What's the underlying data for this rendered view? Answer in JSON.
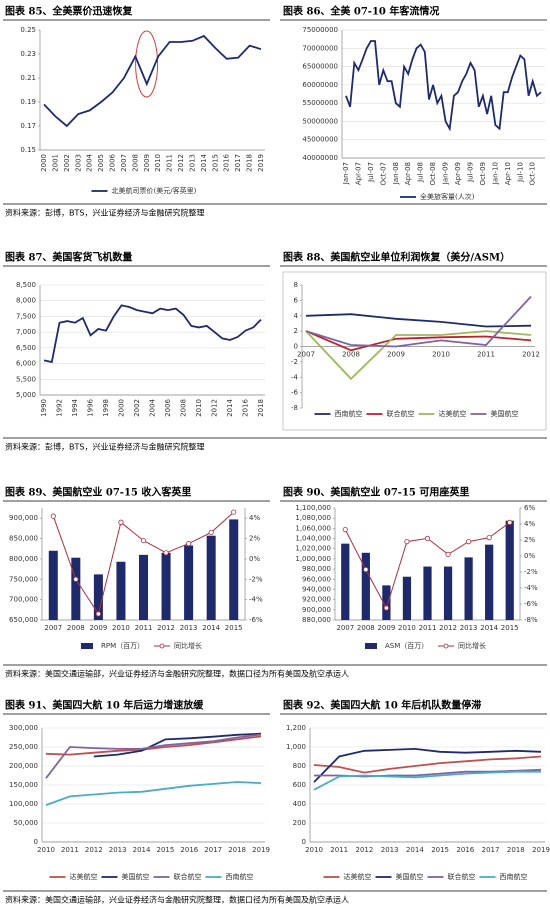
{
  "chart_data": [
    {
      "type": "line",
      "title": "图表 85、全美票价迅速恢复",
      "categories": [
        "2000",
        "2001",
        "2002",
        "2003",
        "2004",
        "2005",
        "2006",
        "2007",
        "2008",
        "2009",
        "2010",
        "2011",
        "2012",
        "2013",
        "2014",
        "2015",
        "2016",
        "2017",
        "2018",
        "2019"
      ],
      "series": [
        {
          "name": "北美航司票价(美元/客英里)",
          "color": "#1f2a6b",
          "values": [
            0.188,
            0.178,
            0.17,
            0.18,
            0.183,
            0.19,
            0.198,
            0.21,
            0.228,
            0.205,
            0.228,
            0.24,
            0.24,
            0.241,
            0.245,
            0.235,
            0.226,
            0.227,
            0.237,
            0.234
          ]
        }
      ],
      "ylim": [
        0.15,
        0.25
      ],
      "yticks": [
        0.15,
        0.17,
        0.19,
        0.21,
        0.23,
        0.25
      ],
      "grid": false,
      "legend": "bottom"
    },
    {
      "type": "line",
      "title": "图表 86、全美 07-10 年客流情况",
      "categories": [
        "Jan-07",
        null,
        null,
        "Apr-07",
        null,
        null,
        "Jul-07",
        null,
        null,
        "Oct-07",
        null,
        null,
        "Jan-08",
        null,
        null,
        "Apr-08",
        null,
        null,
        "Jul-08",
        null,
        null,
        "Oct-08",
        null,
        null,
        "Jan-09",
        null,
        null,
        "Apr-09",
        null,
        null,
        "Jul-09",
        null,
        null,
        "Oct-09",
        null,
        null,
        "Jan-10",
        null,
        null,
        "Apr-10",
        null,
        null,
        "Jul-10",
        null,
        null,
        "Oct-10",
        null,
        null
      ],
      "series": [
        {
          "name": "全美旅客量(人次)",
          "color": "#1f2a6b",
          "values": [
            57000000,
            54000000,
            66000000,
            64000000,
            67000000,
            70000000,
            72000000,
            72000000,
            60000000,
            64000000,
            61000000,
            61000000,
            55000000,
            54000000,
            65000000,
            63000000,
            67000000,
            70000000,
            71000000,
            69000000,
            56000000,
            60000000,
            55000000,
            57000000,
            50000000,
            48000000,
            57000000,
            58000000,
            61000000,
            63000000,
            66000000,
            64000000,
            54000000,
            57000000,
            52000000,
            57000000,
            49000000,
            48000000,
            58000000,
            58000000,
            62000000,
            65000000,
            68000000,
            67000000,
            57000000,
            61000000,
            57000000,
            58000000
          ]
        }
      ],
      "ylim": [
        40000000,
        75000000
      ],
      "yticks": [
        40000000,
        45000000,
        50000000,
        55000000,
        60000000,
        65000000,
        70000000,
        75000000
      ],
      "grid": true,
      "legend": "bottom"
    },
    {
      "type": "line",
      "title": "图表 87、美国客货飞机数量",
      "categories": [
        "1990",
        null,
        "1992",
        null,
        "1994",
        null,
        "1996",
        null,
        "1998",
        null,
        "2000",
        null,
        "2002",
        null,
        "2004",
        null,
        "2006",
        null,
        "2008",
        null,
        "2010",
        null,
        "2012",
        null,
        "2014",
        null,
        "2016",
        null,
        "2018"
      ],
      "values": [
        6100,
        6050,
        7300,
        7350,
        7300,
        7450,
        6900,
        7100,
        7050,
        7500,
        7850,
        7800,
        7700,
        7650,
        7600,
        7750,
        7700,
        7750,
        7550,
        7200,
        7150,
        7200,
        7000,
        6800,
        6750,
        6850,
        7050,
        7150,
        7400
      ],
      "color": "#1f2a6b",
      "ylim": [
        5000,
        8500
      ],
      "yticks": [
        {
          "value": 5000,
          "label": "5,000"
        },
        {
          "value": 5500,
          "label": "5,500"
        },
        {
          "value": 6000,
          "label": "6,000"
        },
        {
          "value": 6500,
          "label": "6,500"
        },
        {
          "value": 7000,
          "label": "7,000"
        },
        {
          "value": 7500,
          "label": "7,500"
        },
        {
          "value": 8000,
          "label": "8,000"
        },
        {
          "value": 8500,
          "label": "8,500"
        }
      ],
      "grid": true
    },
    {
      "type": "line",
      "title": "图表 88、美国航空业单位利润恢复（美分/ASM）",
      "categories": [
        "2007",
        "2008",
        "2009",
        "2010",
        "2011",
        "2012"
      ],
      "series": [
        {
          "name": "西南航空",
          "color": "#1f2a6b",
          "values": [
            4,
            4.2,
            3.6,
            3.2,
            2.6,
            2.7
          ]
        },
        {
          "name": "联合航空",
          "color": "#c0202a",
          "values": [
            2,
            -0.5,
            1.0,
            1.2,
            1.3,
            0.8
          ]
        },
        {
          "name": "达美航空",
          "color": "#9bbb59",
          "values": [
            2,
            -4.2,
            1.5,
            1.5,
            2.0,
            1.5
          ]
        },
        {
          "name": "美国航空",
          "color": "#8064a2",
          "values": [
            2,
            0.2,
            0,
            0.8,
            0.2,
            6.5
          ]
        }
      ],
      "ylim": [
        -8,
        8
      ],
      "yticks": [
        -8,
        -6,
        -4,
        -2,
        0,
        2,
        4,
        6,
        8
      ],
      "grid": false,
      "legend": "bottom"
    },
    {
      "type": "bar",
      "title": "图表 89、美国航空业 07-15 收入客英里",
      "categories": [
        "2007",
        "2008",
        "2009",
        "2010",
        "2011",
        "2012",
        "2013",
        "2014",
        "2015"
      ],
      "series": [
        {
          "name": "RPM（百万）",
          "color": "#1f2a6b",
          "values": [
            820000,
            803000,
            762000,
            793000,
            810000,
            815000,
            833000,
            857000,
            897000
          ]
        },
        {
          "name": "同比增长",
          "color": "#b03040",
          "axis": "y2",
          "values": [
            4.2,
            -2.0,
            -5.4,
            3.6,
            1.8,
            0.6,
            1.5,
            2.6,
            4.6
          ]
        }
      ],
      "ylim": [
        650000,
        925000
      ],
      "yticks": [
        {
          "value": 650000,
          "label": "650,000"
        },
        {
          "value": 700000,
          "label": "700,000"
        },
        {
          "value": 750000,
          "label": "750,000"
        },
        {
          "value": 800000,
          "label": "800,000"
        },
        {
          "value": 850000,
          "label": "850,000"
        },
        {
          "value": 900000,
          "label": "900,000"
        }
      ],
      "y2lim": [
        -6,
        5
      ],
      "y2ticks": [
        {
          "value": -6,
          "label": "-6%"
        },
        {
          "value": -4,
          "label": "-4%"
        },
        {
          "value": -2,
          "label": "-2%"
        },
        {
          "value": 0,
          "label": "0%"
        },
        {
          "value": 2,
          "label": "2%"
        },
        {
          "value": 4,
          "label": "4%"
        }
      ],
      "grid": false,
      "legend": "bottom"
    },
    {
      "type": "bar",
      "title": "图表 90、美国航空业 07-15 可用座英里",
      "categories": [
        "2007",
        "2008",
        "2009",
        "2010",
        "2011",
        "2012",
        "2013",
        "2014",
        "2015"
      ],
      "series": [
        {
          "name": "ASM（百万）",
          "color": "#1f2a6b",
          "values": [
            1030000,
            1012000,
            948000,
            965000,
            985000,
            985000,
            1003000,
            1028000,
            1075000
          ]
        },
        {
          "name": "同比增长",
          "color": "#b03040",
          "axis": "y2",
          "values": [
            3.3,
            -1.7,
            -6.5,
            1.8,
            2.2,
            0.2,
            1.8,
            2.3,
            4.2
          ]
        }
      ],
      "ylim": [
        880000,
        1100000
      ],
      "yticks": [
        {
          "value": 880000,
          "label": "880,000"
        },
        {
          "value": 900000,
          "label": "900,000"
        },
        {
          "value": 920000,
          "label": "920,000"
        },
        {
          "value": 940000,
          "label": "940,000"
        },
        {
          "value": 960000,
          "label": "960,000"
        },
        {
          "value": 980000,
          "label": "980,000"
        },
        {
          "value": 1000000,
          "label": "1,000,000"
        },
        {
          "value": 1020000,
          "label": "1,020,000"
        },
        {
          "value": 1040000,
          "label": "1,040,000"
        },
        {
          "value": 1060000,
          "label": "1,060,000"
        },
        {
          "value": 1080000,
          "label": "1,080,000"
        },
        {
          "value": 1100000,
          "label": "1,100,000"
        }
      ],
      "y2lim": [
        -8,
        6
      ],
      "y2ticks": [
        {
          "value": -8,
          "label": "-8%"
        },
        {
          "value": -6,
          "label": "-6%"
        },
        {
          "value": -4,
          "label": "-4%"
        },
        {
          "value": -2,
          "label": "-2%"
        },
        {
          "value": 0,
          "label": "0%"
        },
        {
          "value": 2,
          "label": "2%"
        },
        {
          "value": 4,
          "label": "4%"
        },
        {
          "value": 6,
          "label": "6%"
        }
      ],
      "grid": false,
      "legend": "bottom"
    },
    {
      "type": "line",
      "title": "图表 91、美国四大航 10 年后运力增速放缓",
      "categories": [
        "2010",
        "2011",
        "2012",
        "2013",
        "2014",
        "2015",
        "2016",
        "2017",
        "2018",
        "2019"
      ],
      "series": [
        {
          "name": "达美航空",
          "color": "#c0504d",
          "values": [
            232000,
            230000,
            235000,
            240000,
            243000,
            250000,
            255000,
            262000,
            270000,
            278000
          ]
        },
        {
          "name": "美国航空",
          "color": "#1f2a6b",
          "values": [
            null,
            null,
            225000,
            230000,
            240000,
            270000,
            273000,
            277000,
            282000,
            285000
          ]
        },
        {
          "name": "联合航空",
          "color": "#8064a2",
          "values": [
            168000,
            250000,
            247000,
            245000,
            245000,
            255000,
            260000,
            265000,
            275000,
            283000
          ]
        },
        {
          "name": "西南航空",
          "color": "#4bacc6",
          "values": [
            97000,
            120000,
            125000,
            130000,
            132000,
            140000,
            148000,
            153000,
            158000,
            155000
          ]
        }
      ],
      "ylim": [
        0,
        300000
      ],
      "yticks": [
        0,
        {
          "value": 50000,
          "label": "50,000"
        },
        {
          "value": 100000,
          "label": "100,000"
        },
        {
          "value": 150000,
          "label": "150,000"
        },
        {
          "value": 200000,
          "label": "200,000"
        },
        {
          "value": 250000,
          "label": "250,000"
        },
        {
          "value": 300000,
          "label": "300,000"
        }
      ],
      "grid": true,
      "legend": "bottom"
    },
    {
      "type": "line",
      "title": "图表 92、美国四大航 10 年后机队数量停滞",
      "categories": [
        "2010",
        "2011",
        "2012",
        "2013",
        "2014",
        "2015",
        "2016",
        "2017",
        "2018",
        "2019"
      ],
      "series": [
        {
          "name": "达美航空",
          "color": "#c0504d",
          "values": [
            810,
            790,
            730,
            770,
            800,
            830,
            850,
            870,
            880,
            900
          ]
        },
        {
          "name": "美国航空",
          "color": "#1f2a6b",
          "values": [
            630,
            900,
            960,
            970,
            980,
            950,
            940,
            950,
            960,
            950
          ]
        },
        {
          "name": "联合航空",
          "color": "#8064a2",
          "values": [
            700,
            700,
            690,
            700,
            700,
            720,
            740,
            740,
            750,
            760
          ]
        },
        {
          "name": "西南航空",
          "color": "#4bacc6",
          "values": [
            550,
            690,
            700,
            690,
            680,
            700,
            720,
            730,
            740,
            740
          ]
        }
      ],
      "ylim": [
        0,
        1200
      ],
      "yticks": [
        0,
        200,
        400,
        600,
        800,
        {
          "value": 1000,
          "label": "1,000"
        },
        {
          "value": 1200,
          "label": "1,200"
        }
      ],
      "grid": true,
      "legend": "bottom"
    }
  ],
  "sources": [
    "资料来源：彭博，BTS，兴业证券经济与金融研究院整理",
    "资料来源：彭博，BTS，兴业证券经济与金融研究院整理",
    "资料来源：美国交通运输部，兴业证券经济与金融研究院整理，数据口径为所有美国及航空承运人",
    "资料来源：美国交通运输部，兴业证券经济与金融研究院整理，数据口径为所有美国及航空承运人"
  ]
}
